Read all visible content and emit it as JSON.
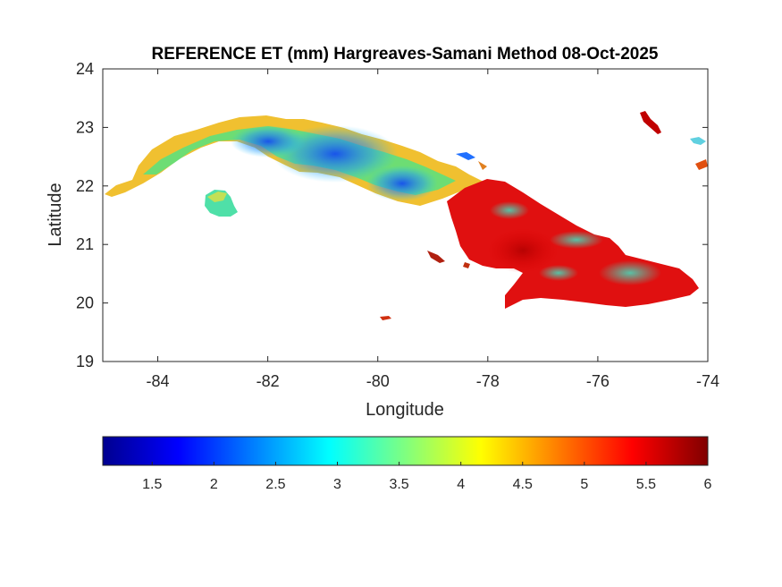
{
  "map": {
    "title": "REFERENCE ET (mm) Hargreaves-Samani Method  08-Oct-2025",
    "xlabel": "Longitude",
    "ylabel": "Latitude",
    "xlim": [
      -85,
      -74
    ],
    "ylim": [
      19,
      24
    ],
    "xticks": [
      {
        "value": -84,
        "label": "-84"
      },
      {
        "value": -82,
        "label": "-82"
      },
      {
        "value": -80,
        "label": "-80"
      },
      {
        "value": -78,
        "label": "-78"
      },
      {
        "value": -76,
        "label": "-76"
      },
      {
        "value": -74,
        "label": "-74"
      }
    ],
    "yticks": [
      {
        "value": 19,
        "label": "19"
      },
      {
        "value": 20,
        "label": "20"
      },
      {
        "value": 21,
        "label": "21"
      },
      {
        "value": 22,
        "label": "22"
      },
      {
        "value": 23,
        "label": "23"
      },
      {
        "value": 24,
        "label": "24"
      }
    ],
    "grid": false,
    "colormap": "jet",
    "region": "Cuba",
    "colors": {
      "axis": "#262626",
      "background": "#ffffff"
    }
  },
  "colorbar": {
    "location": "bottom",
    "range": [
      1.1,
      6
    ],
    "ticks": [
      {
        "value": 1.5,
        "label": "1.5"
      },
      {
        "value": 2,
        "label": "2"
      },
      {
        "value": 2.5,
        "label": "2.5"
      },
      {
        "value": 3,
        "label": "3"
      },
      {
        "value": 3.5,
        "label": "3.5"
      },
      {
        "value": 4,
        "label": "4"
      },
      {
        "value": 4.5,
        "label": "4.5"
      },
      {
        "value": 5,
        "label": "5"
      },
      {
        "value": 5.5,
        "label": "5.5"
      },
      {
        "value": 6,
        "label": "6"
      }
    ]
  }
}
